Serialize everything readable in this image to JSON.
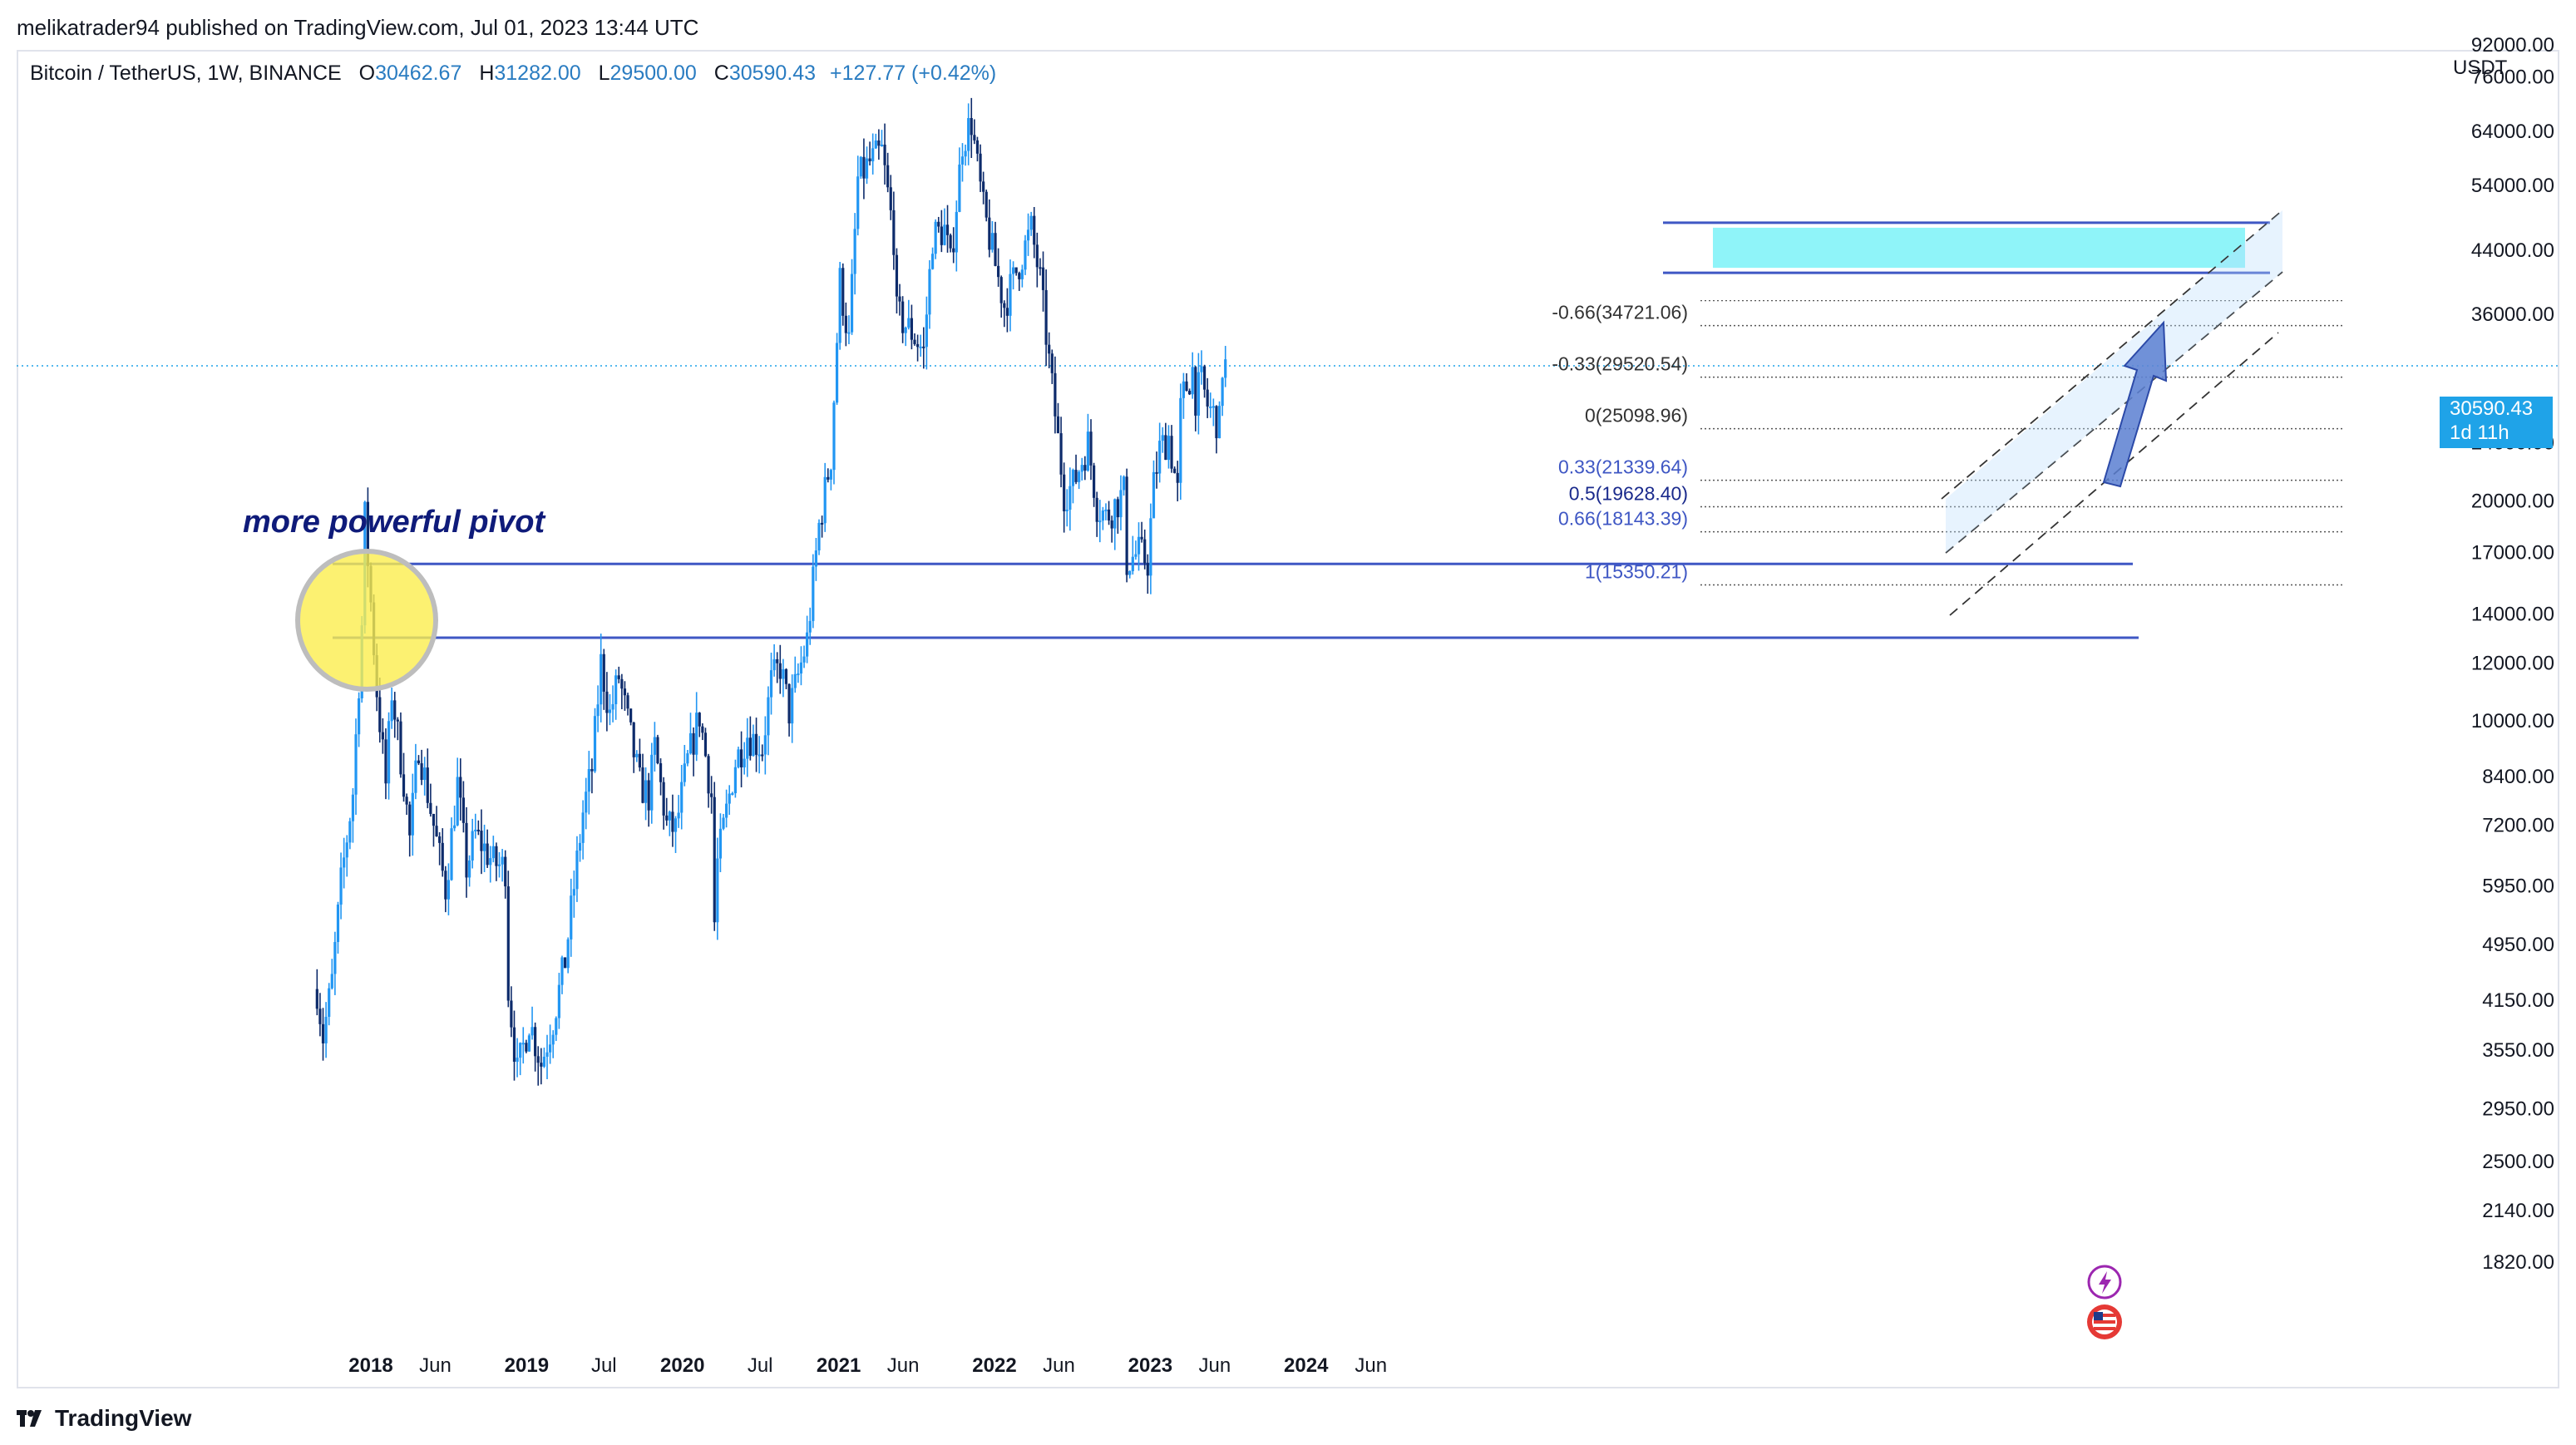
{
  "header": {
    "published_by": "melikatrader94 published on TradingView.com, Jul 01, 2023 13:44 UTC",
    "symbol": "Bitcoin / TetherUS, 1W, BINANCE",
    "open_label": "O",
    "open": "30462.67",
    "high_label": "H",
    "high": "31282.00",
    "low_label": "L",
    "low": "29500.00",
    "close_label": "C",
    "close": "30590.43",
    "change": "+127.77 (+0.42%)"
  },
  "axis": {
    "currency": "USDT",
    "top_partial": "92000.00",
    "price_badge_value": "30590.43",
    "price_badge_time": "1d 11h"
  },
  "footer": {
    "brand": "TradingView"
  },
  "annotation": {
    "pivot_text": "more powerful pivot"
  },
  "colors": {
    "up": "#2196f3",
    "down": "#0d2b6b",
    "zone": "#8ff4f9",
    "line": "#3f57c4",
    "accent": "#1fa3e8"
  },
  "icons": [
    "lightning-icon",
    "us-flag-icon",
    "tradingview-logo-icon"
  ],
  "chart_data": {
    "type": "candlestick",
    "scale": "log",
    "y_ticks": [
      76000,
      64000,
      54000,
      44000,
      36000,
      24000,
      20000,
      17000,
      14000,
      12000,
      10000,
      8400,
      7200,
      5950,
      4950,
      4150,
      3550,
      2950,
      2500,
      2140,
      1820
    ],
    "y_tick_labels": [
      "76000.00",
      "64000.00",
      "54000.00",
      "44000.00",
      "36000.00",
      "24000.00",
      "20000.00",
      "17000.00",
      "14000.00",
      "12000.00",
      "10000.00",
      "8400.00",
      "7200.00",
      "5950.00",
      "4950.00",
      "4150.00",
      "3550.00",
      "2950.00",
      "2500.00",
      "2140.00",
      "1820.00"
    ],
    "x_ticks": [
      {
        "label": "2018",
        "date": "2018-01-01",
        "bold": true
      },
      {
        "label": "Jun",
        "date": "2018-06-01",
        "bold": false
      },
      {
        "label": "2019",
        "date": "2019-01-01",
        "bold": true
      },
      {
        "label": "Jul",
        "date": "2019-07-01",
        "bold": false
      },
      {
        "label": "2020",
        "date": "2020-01-01",
        "bold": true
      },
      {
        "label": "Jul",
        "date": "2020-07-01",
        "bold": false
      },
      {
        "label": "2021",
        "date": "2021-01-01",
        "bold": true
      },
      {
        "label": "Jun",
        "date": "2021-06-01",
        "bold": false
      },
      {
        "label": "2022",
        "date": "2022-01-01",
        "bold": true
      },
      {
        "label": "Jun",
        "date": "2022-06-01",
        "bold": false
      },
      {
        "label": "2023",
        "date": "2023-01-01",
        "bold": true
      },
      {
        "label": "Jun",
        "date": "2023-06-01",
        "bold": false
      },
      {
        "label": "2024",
        "date": "2024-01-01",
        "bold": true
      },
      {
        "label": "Jun",
        "date": "2024-06-01",
        "bold": false
      }
    ],
    "fib_levels": [
      {
        "label": "-0.66(34721.06)",
        "value": 34721.06
      },
      {
        "label": "-0.33(29520.54)",
        "value": 29520.54
      },
      {
        "label": "0(25098.96)",
        "value": 25098.96
      },
      {
        "label": "0.33(21339.64)",
        "value": 21339.64
      },
      {
        "label": "0.5(19628.40)",
        "value": 19628.4
      },
      {
        "label": "0.66(18143.39)",
        "value": 18143.39
      },
      {
        "label": "1(15350.21)",
        "value": 15350.21
      }
    ],
    "horizontal_lines": [
      16400,
      13000
    ],
    "resistance_zone": [
      41000,
      48000
    ],
    "last_price": 30590.43,
    "anchors": [
      [
        "2017-08-28",
        4300
      ],
      [
        "2017-09-11",
        3700
      ],
      [
        "2017-10-02",
        4400
      ],
      [
        "2017-10-23",
        6000
      ],
      [
        "2017-11-20",
        8000
      ],
      [
        "2017-12-11",
        13500
      ],
      [
        "2017-12-18",
        19000
      ],
      [
        "2018-01-01",
        14500
      ],
      [
        "2018-01-15",
        11000
      ],
      [
        "2018-02-05",
        8200
      ],
      [
        "2018-02-19",
        11000
      ],
      [
        "2018-03-19",
        8300
      ],
      [
        "2018-04-02",
        6900
      ],
      [
        "2018-04-23",
        9300
      ],
      [
        "2018-06-11",
        6500
      ],
      [
        "2018-06-25",
        5900
      ],
      [
        "2018-07-23",
        8200
      ],
      [
        "2018-08-13",
        6300
      ],
      [
        "2018-09-03",
        7000
      ],
      [
        "2018-10-15",
        6400
      ],
      [
        "2018-11-12",
        6300
      ],
      [
        "2018-11-19",
        4300
      ],
      [
        "2018-12-10",
        3300
      ],
      [
        "2019-01-07",
        3900
      ],
      [
        "2019-02-04",
        3400
      ],
      [
        "2019-03-04",
        3900
      ],
      [
        "2019-04-01",
        4700
      ],
      [
        "2019-05-13",
        7500
      ],
      [
        "2019-06-03",
        8600
      ],
      [
        "2019-06-24",
        12000
      ],
      [
        "2019-07-15",
        10200
      ],
      [
        "2019-08-05",
        11500
      ],
      [
        "2019-09-23",
        8200
      ],
      [
        "2019-10-14",
        7900
      ],
      [
        "2019-10-28",
        9200
      ],
      [
        "2019-11-25",
        7200
      ],
      [
        "2019-12-16",
        7100
      ],
      [
        "2020-01-13",
        8800
      ],
      [
        "2020-02-10",
        10200
      ],
      [
        "2020-03-09",
        7900
      ],
      [
        "2020-03-16",
        5300
      ],
      [
        "2020-03-23",
        6400
      ],
      [
        "2020-05-04",
        8800
      ],
      [
        "2020-06-01",
        9600
      ],
      [
        "2020-07-06",
        9200
      ],
      [
        "2020-07-27",
        11300
      ],
      [
        "2020-08-17",
        11900
      ],
      [
        "2020-09-07",
        10300
      ],
      [
        "2020-10-19",
        12900
      ],
      [
        "2020-11-16",
        18500
      ],
      [
        "2020-12-14",
        23000
      ],
      [
        "2021-01-04",
        40000
      ],
      [
        "2021-01-25",
        33000
      ],
      [
        "2021-02-15",
        55000
      ],
      [
        "2021-03-15",
        58000
      ],
      [
        "2021-04-12",
        60000
      ],
      [
        "2021-05-10",
        46000
      ],
      [
        "2021-05-17",
        36000
      ],
      [
        "2021-06-21",
        34000
      ],
      [
        "2021-07-19",
        32000
      ],
      [
        "2021-08-09",
        46000
      ],
      [
        "2021-09-06",
        47000
      ],
      [
        "2021-09-20",
        42000
      ],
      [
        "2021-10-18",
        62000
      ],
      [
        "2021-11-08",
        66000
      ],
      [
        "2021-11-22",
        57000
      ],
      [
        "2021-12-06",
        50000
      ],
      [
        "2022-01-03",
        42000
      ],
      [
        "2022-01-24",
        37000
      ],
      [
        "2022-03-28",
        47000
      ],
      [
        "2022-04-18",
        40000
      ],
      [
        "2022-05-09",
        31000
      ],
      [
        "2022-06-13",
        20500
      ],
      [
        "2022-07-04",
        21000
      ],
      [
        "2022-08-08",
        24000
      ],
      [
        "2022-08-29",
        19800
      ],
      [
        "2022-09-19",
        19000
      ],
      [
        "2022-10-31",
        20500
      ],
      [
        "2022-11-07",
        16500
      ],
      [
        "2022-12-05",
        17000
      ],
      [
        "2022-12-26",
        16500
      ],
      [
        "2023-01-09",
        21000
      ],
      [
        "2023-01-23",
        23500
      ],
      [
        "2023-02-13",
        24500
      ],
      [
        "2023-03-06",
        20500
      ],
      [
        "2023-03-13",
        26500
      ],
      [
        "2023-03-20",
        28000
      ],
      [
        "2023-04-10",
        30200
      ],
      [
        "2023-04-17",
        27800
      ],
      [
        "2023-05-01",
        29000
      ],
      [
        "2023-05-15",
        27000
      ],
      [
        "2023-06-12",
        25500
      ],
      [
        "2023-06-19",
        30500
      ],
      [
        "2023-06-26",
        30590
      ]
    ]
  }
}
